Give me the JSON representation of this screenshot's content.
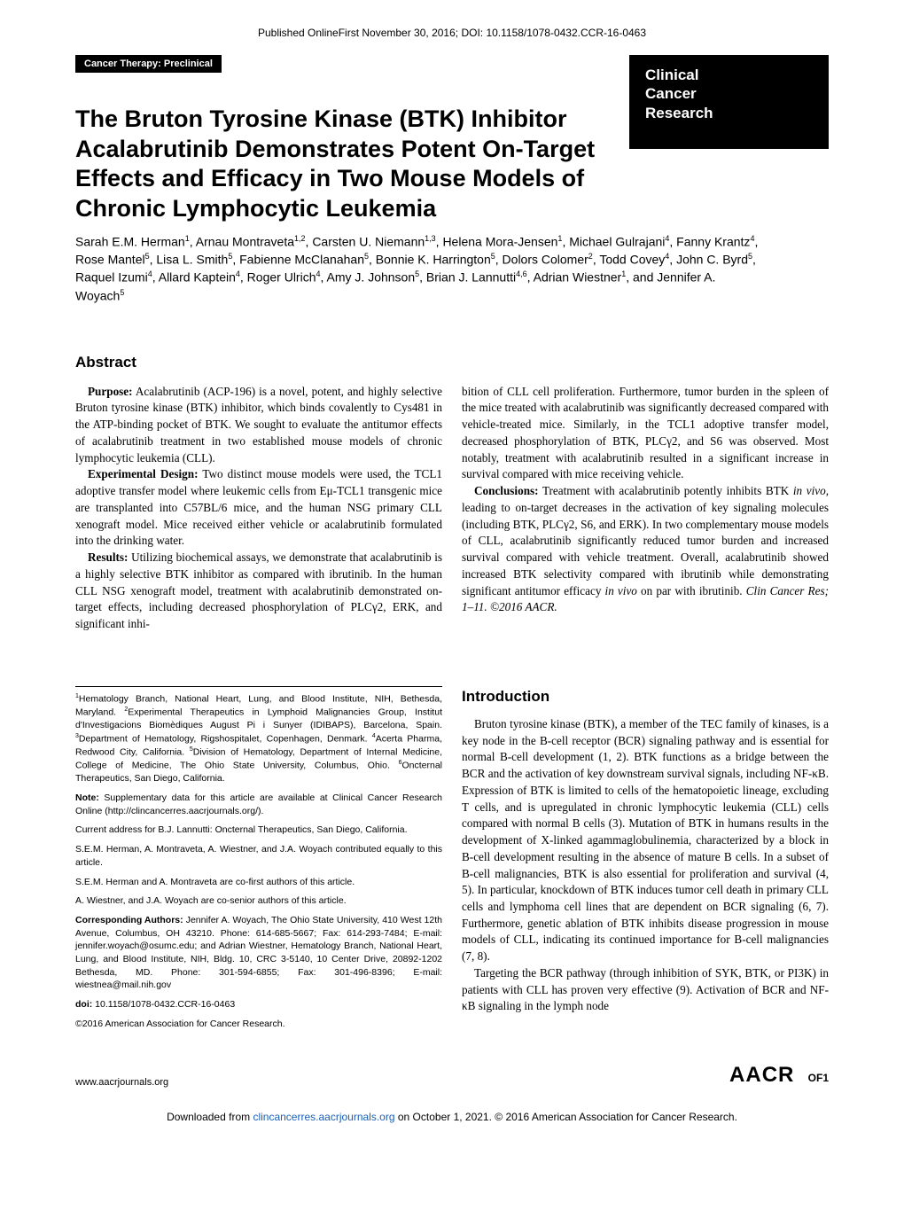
{
  "topline": "Published OnlineFirst November 30, 2016; DOI: 10.1158/1078-0432.CCR-16-0463",
  "category": "Cancer Therapy: Preclinical",
  "journal": {
    "l1": "Clinical",
    "l2": "Cancer",
    "l3": "Research"
  },
  "title": "The Bruton Tyrosine Kinase (BTK) Inhibitor Acalabrutinib Demonstrates Potent On-Target Effects and Efficacy in Two Mouse Models of Chronic Lymphocytic Leukemia",
  "authors_html": "Sarah E.M. Herman<sup>1</sup>, Arnau Montraveta<sup>1,2</sup>, Carsten U. Niemann<sup>1,3</sup>, Helena Mora-Jensen<sup>1</sup>, Michael Gulrajani<sup>4</sup>, Fanny Krantz<sup>4</sup>, Rose Mantel<sup>5</sup>, Lisa L. Smith<sup>5</sup>, Fabienne McClanahan<sup>5</sup>, Bonnie K. Harrington<sup>5</sup>, Dolors Colomer<sup>2</sup>, Todd Covey<sup>4</sup>, John C. Byrd<sup>5</sup>, Raquel Izumi<sup>4</sup>, Allard Kaptein<sup>4</sup>, Roger Ulrich<sup>4</sup>, Amy J. Johnson<sup>5</sup>, Brian J. Lannutti<sup>4,6</sup>, Adrian Wiestner<sup>1</sup>, and Jennifer A. Woyach<sup>5</sup>",
  "abstract_heading": "Abstract",
  "abstract_left": {
    "p1_label": "Purpose:",
    "p1": " Acalabrutinib (ACP-196) is a novel, potent, and highly selective Bruton tyrosine kinase (BTK) inhibitor, which binds covalently to Cys481 in the ATP-binding pocket of BTK. We sought to evaluate the antitumor effects of acalabrutinib treatment in two established mouse models of chronic lymphocytic leukemia (CLL).",
    "p2_label": "Experimental Design:",
    "p2": " Two distinct mouse models were used, the TCL1 adoptive transfer model where leukemic cells from Eμ-TCL1 transgenic mice are transplanted into C57BL/6 mice, and the human NSG primary CLL xenograft model. Mice received either vehicle or acalabrutinib formulated into the drinking water.",
    "p3_label": "Results:",
    "p3": " Utilizing biochemical assays, we demonstrate that acalabrutinib is a highly selective BTK inhibitor as compared with ibrutinib. In the human CLL NSG xenograft model, treatment with acalabrutinib demonstrated on-target effects, including decreased phosphorylation of PLCγ2, ERK, and significant inhi-"
  },
  "abstract_right": {
    "p1": "bition of CLL cell proliferation. Furthermore, tumor burden in the spleen of the mice treated with acalabrutinib was significantly decreased compared with vehicle-treated mice. Similarly, in the TCL1 adoptive transfer model, decreased phosphorylation of BTK, PLCγ2, and S6 was observed. Most notably, treatment with acalabrutinib resulted in a significant increase in survival compared with mice receiving vehicle.",
    "p2_label": "Conclusions:",
    "p2a": " Treatment with acalabrutinib potently inhibits BTK ",
    "p2_em1": "in vivo",
    "p2b": ", leading to on-target decreases in the activation of key signaling molecules (including BTK, PLCγ2, S6, and ERK). In two complementary mouse models of CLL, acalabrutinib significantly reduced tumor burden and increased survival compared with vehicle treatment. Overall, acalabrutinib showed increased BTK selectivity compared with ibrutinib while demonstrating significant antitumor efficacy ",
    "p2_em2": "in vivo",
    "p2c": " on par with ibrutinib. ",
    "p2_cite": "Clin Cancer Res; 1–11. ©2016 AACR."
  },
  "affiliations_html": "<sup>1</sup>Hematology Branch, National Heart, Lung, and Blood Institute, NIH, Bethesda, Maryland. <sup>2</sup>Experimental Therapeutics in Lymphoid Malignancies Group, Institut d'Investigacions Biomèdiques August Pi i Sunyer (IDIBAPS), Barcelona, Spain. <sup>3</sup>Department of Hematology, Rigshospitalet, Copenhagen, Denmark. <sup>4</sup>Acerta Pharma, Redwood City, California. <sup>5</sup>Division of Hematology, Department of Internal Medicine, College of Medicine, The Ohio State University, Columbus, Ohio. <sup>6</sup>Oncternal Therapeutics, San Diego, California.",
  "note_label": "Note:",
  "note": " Supplementary data for this article are available at Clinical Cancer Research Online (http://clincancerres.aacrjournals.org/).",
  "current_addr": "Current address for B.J. Lannutti: Oncternal Therapeutics, San Diego, California.",
  "contrib_equal": "S.E.M. Herman, A. Montraveta, A. Wiestner, and J.A. Woyach contributed equally to this article.",
  "cofirst": "S.E.M. Herman and A. Montraveta are co-first authors of this article.",
  "cosenior": "A. Wiestner, and J.A. Woyach are co-senior authors of this article.",
  "corr_label": "Corresponding Authors:",
  "corr": " Jennifer A. Woyach, The Ohio State University, 410 West 12th Avenue, Columbus, OH 43210. Phone: 614-685-5667; Fax: 614-293-7484; E-mail: jennifer.woyach@osumc.edu; and Adrian Wiestner, Hematology Branch, National Heart, Lung, and Blood Institute, NIH, Bldg. 10, CRC 3-5140, 10 Center Drive, 20892-1202 Bethesda, MD. Phone: 301-594-6855; Fax: 301-496-8396; E-mail: wiestnea@mail.nih.gov",
  "doi_label": "doi:",
  "doi": " 10.1158/1078-0432.CCR-16-0463",
  "copyright": "©2016 American Association for Cancer Research.",
  "intro_heading": "Introduction",
  "intro_p1": "Bruton tyrosine kinase (BTK), a member of the TEC family of kinases, is a key node in the B-cell receptor (BCR) signaling pathway and is essential for normal B-cell development (1, 2). BTK functions as a bridge between the BCR and the activation of key downstream survival signals, including NF-κB. Expression of BTK is limited to cells of the hematopoietic lineage, excluding T cells, and is upregulated in chronic lymphocytic leukemia (CLL) cells compared with normal B cells (3). Mutation of BTK in humans results in the development of X-linked agammaglobulinemia, characterized by a block in B-cell development resulting in the absence of mature B cells. In a subset of B-cell malignancies, BTK is also essential for proliferation and survival (4, 5). In particular, knockdown of BTK induces tumor cell death in primary CLL cells and lymphoma cell lines that are dependent on BCR signaling (6, 7). Furthermore, genetic ablation of BTK inhibits disease progression in mouse models of CLL, indicating its continued importance for B-cell malignancies (7, 8).",
  "intro_p2": "Targeting the BCR pathway (through inhibition of SYK, BTK, or PI3K) in patients with CLL has proven very effective (9). Activation of BCR and NF-κB signaling in the lymph node",
  "footer_url": "www.aacrjournals.org",
  "aacr": "AACR",
  "page_num": "OF1",
  "download_a": "Downloaded from ",
  "download_link": "clincancerres.aacrjournals.org",
  "download_b": " on October 1, 2021. © 2016 American Association for Cancer Research."
}
